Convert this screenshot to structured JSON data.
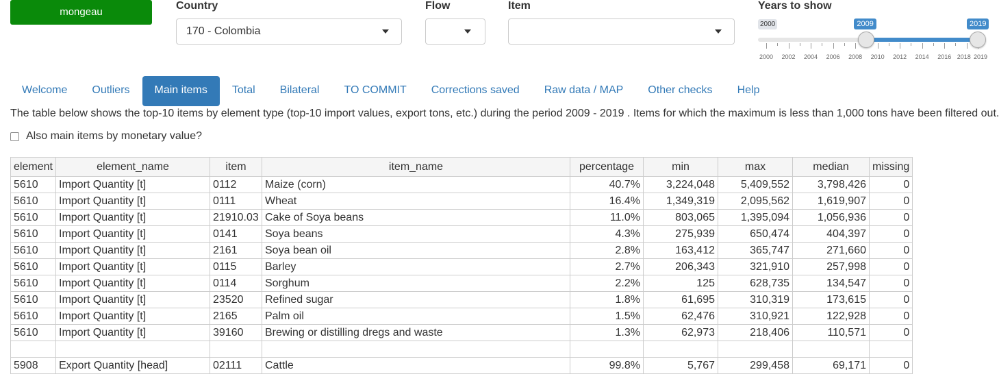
{
  "user": {
    "name": "mongeau"
  },
  "country": {
    "label": "Country",
    "value": "170 - Colombia"
  },
  "flow": {
    "label": "Flow",
    "value": ""
  },
  "item": {
    "label": "Item",
    "value": ""
  },
  "years": {
    "label": "Years to show",
    "min": 2000,
    "max": 2019,
    "from": 2009,
    "to": 2019,
    "min_label": "2000",
    "from_label": "2009",
    "to_label": "2019",
    "ticks": [
      "2000",
      "2002",
      "2004",
      "2006",
      "2008",
      "2010",
      "2012",
      "2014",
      "2016",
      "2018",
      "2019"
    ]
  },
  "tabs": [
    {
      "label": "Welcome",
      "active": false
    },
    {
      "label": "Outliers",
      "active": false
    },
    {
      "label": "Main items",
      "active": true
    },
    {
      "label": "Total",
      "active": false
    },
    {
      "label": "Bilateral",
      "active": false
    },
    {
      "label": "TO COMMIT",
      "active": false
    },
    {
      "label": "Corrections saved",
      "active": false
    },
    {
      "label": "Raw data / MAP",
      "active": false
    },
    {
      "label": "Other checks",
      "active": false
    },
    {
      "label": "Help",
      "active": false
    }
  ],
  "intro": "The table below shows the top-10 items by element type (top-10 import values, export tons, etc.) during the period 2009 - 2019 . Items for which the maximum is less than 1,000 tons have been filtered out.",
  "checkbox": {
    "label": "Also main items by monetary value?",
    "checked": false
  },
  "table": {
    "columns": [
      "element",
      "element_name",
      "item",
      "item_name",
      "percentage",
      "min",
      "max",
      "median",
      "missing"
    ],
    "rows": [
      [
        "5610",
        "Import Quantity [t]",
        "0112",
        "Maize (corn)",
        "40.7%",
        "3,224,048",
        "5,409,552",
        "3,798,426",
        "0"
      ],
      [
        "5610",
        "Import Quantity [t]",
        "0111",
        "Wheat",
        "16.4%",
        "1,349,319",
        "2,095,562",
        "1,619,907",
        "0"
      ],
      [
        "5610",
        "Import Quantity [t]",
        "21910.03",
        "Cake of Soya beans",
        "11.0%",
        "803,065",
        "1,395,094",
        "1,056,936",
        "0"
      ],
      [
        "5610",
        "Import Quantity [t]",
        "0141",
        "Soya beans",
        "4.3%",
        "275,939",
        "650,474",
        "404,397",
        "0"
      ],
      [
        "5610",
        "Import Quantity [t]",
        "2161",
        "Soya bean oil",
        "2.8%",
        "163,412",
        "365,747",
        "271,660",
        "0"
      ],
      [
        "5610",
        "Import Quantity [t]",
        "0115",
        "Barley",
        "2.7%",
        "206,343",
        "321,910",
        "257,998",
        "0"
      ],
      [
        "5610",
        "Import Quantity [t]",
        "0114",
        "Sorghum",
        "2.2%",
        "125",
        "628,735",
        "134,547",
        "0"
      ],
      [
        "5610",
        "Import Quantity [t]",
        "23520",
        "Refined sugar",
        "1.8%",
        "61,695",
        "310,319",
        "173,615",
        "0"
      ],
      [
        "5610",
        "Import Quantity [t]",
        "2165",
        "Palm oil",
        "1.5%",
        "62,476",
        "310,921",
        "122,928",
        "0"
      ],
      [
        "5610",
        "Import Quantity [t]",
        "39160",
        "Brewing or distilling dregs and waste",
        "1.3%",
        "62,973",
        "218,406",
        "110,571",
        "0"
      ],
      [
        "",
        "",
        "",
        "",
        "",
        "",
        "",
        "",
        ""
      ],
      [
        "5908",
        "Export Quantity [head]",
        "02111",
        "Cattle",
        "99.8%",
        "5,767",
        "299,458",
        "69,171",
        "0"
      ]
    ]
  }
}
